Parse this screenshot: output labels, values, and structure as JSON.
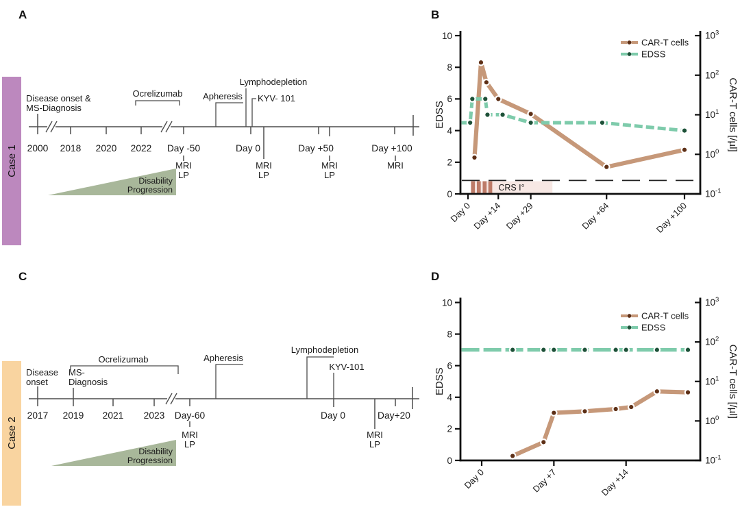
{
  "figure": {
    "background": "#ffffff"
  },
  "panels": {
    "a": {
      "letter": "A",
      "case_label": "Case 1",
      "case_color": "#bc88be",
      "disease_onset_line1": "Disease onset &",
      "disease_onset_line2": "MS-Diagnosis",
      "ocrelizumab": "Ocrelizumab",
      "apheresis": "Apheresis",
      "lymphodepletion": "Lymphodepletion",
      "kyv101": "KYV- 101",
      "ticks": [
        "2000",
        "2018",
        "2020",
        "2022",
        "Day -50",
        "Day 0",
        "Day +50",
        "Day +100"
      ],
      "mri": "MRI",
      "lp": "LP",
      "disability_line1": "Disability",
      "disability_line2": "Progression",
      "triangle_color": "#a8b79a"
    },
    "b": {
      "letter": "B"
    },
    "c": {
      "letter": "C",
      "case_label": "Case 2",
      "case_color": "#f9d4a0",
      "disease_line1": "Disease",
      "disease_line2": "onset",
      "ms_line1": "MS-",
      "ms_line2": "Diagnosis",
      "ocrelizumab": "Ocrelizumab",
      "apheresis": "Apheresis",
      "lymphodepletion": "Lymphodepletion",
      "kyv101": "KYV-101",
      "ticks": [
        "2017",
        "2019",
        "2021",
        "2023",
        "Day-60",
        "Day 0",
        "Day+20"
      ],
      "mri": "MRI",
      "lp": "LP",
      "disability_line1": "Disability",
      "disability_line2": "Progression",
      "triangle_color": "#a8b79a"
    },
    "d": {
      "letter": "D"
    }
  },
  "chart_data": [
    {
      "panel": "B",
      "type": "line",
      "left_axis": {
        "label": "EDSS",
        "min": 0,
        "max": 10,
        "ticks": [
          0,
          2,
          4,
          6,
          8,
          10
        ]
      },
      "right_axis": {
        "label": "CAR-T cells [/µl]",
        "scale": "log10",
        "tick_exponents": [
          3,
          2,
          1,
          0,
          -1
        ]
      },
      "x_ticks": [
        {
          "day": 0,
          "label": "Day 0"
        },
        {
          "day": 14,
          "label": "Day +14"
        },
        {
          "day": 29,
          "label": "Day +29"
        },
        {
          "day": 64,
          "label": "Day +64"
        },
        {
          "day": 100,
          "label": "Day +100"
        }
      ],
      "legend": [
        {
          "label": "CAR-T cells",
          "line_color": "#c69879",
          "dot_color": "#5d2f16"
        },
        {
          "label": "EDSS",
          "line_color": "#7ecbab",
          "dot_color": "#1d5138"
        }
      ],
      "series": [
        {
          "name": "CAR-T cells",
          "axis": "right",
          "unit": "/µl",
          "days": [
            3,
            6,
            8.5,
            14,
            29,
            64,
            100
          ],
          "values": [
            0.83,
            210,
            66,
            25,
            10.5,
            0.48,
            1.3
          ],
          "line_color": "#c69879",
          "dot_color": "#5d2f16",
          "dash": "none",
          "width": 6.2,
          "start_at_axis": false
        },
        {
          "name": "EDSS",
          "axis": "left",
          "days": [
            1,
            2,
            8,
            9,
            16,
            29,
            62,
            100
          ],
          "values": [
            4.5,
            6,
            6,
            5,
            5,
            4.5,
            4.5,
            4
          ],
          "line_color": "#7ecbab",
          "dot_color": "#1d5138",
          "dash": "12 5",
          "width": 5,
          "start_at_axis": true
        }
      ],
      "annotations": {
        "dashed_line_edss": 0.85,
        "crs": {
          "label": "CRS I°",
          "day_start": 2,
          "day_end": 39,
          "bar_days": [
            2.3,
            5,
            7.7,
            10.3
          ],
          "bar_width_days": 1.8,
          "box_color": "#f7e8e4",
          "bar_color": "#bd7b68",
          "top_edss": 0.8
        }
      }
    },
    {
      "panel": "D",
      "type": "line",
      "left_axis": {
        "label": "EDSS",
        "min": 0,
        "max": 10,
        "ticks": [
          0,
          2,
          4,
          6,
          8,
          10
        ]
      },
      "right_axis": {
        "label": "CAR-T cells [/µl]",
        "scale": "log10",
        "tick_exponents": [
          3,
          2,
          1,
          0,
          -1
        ]
      },
      "x_ticks": [
        {
          "day": 0,
          "label": "Day 0"
        },
        {
          "day": 7,
          "label": "Day +7"
        },
        {
          "day": 14,
          "label": "Day +14"
        }
      ],
      "legend": [
        {
          "label": "CAR-T cells",
          "line_color": "#c69879",
          "dot_color": "#5d2f16"
        },
        {
          "label": "EDSS",
          "line_color": "#7ecbab",
          "dot_color": "#1d5138"
        }
      ],
      "series": [
        {
          "name": "CAR-T cells",
          "axis": "right",
          "unit": "/µl",
          "days": [
            3,
            6,
            7,
            10,
            13,
            14.5,
            17,
            20
          ],
          "values": [
            0.13,
            0.29,
            1.6,
            1.75,
            2.0,
            2.25,
            5.6,
            5.3
          ],
          "line_color": "#c69879",
          "dot_color": "#5d2f16",
          "dash": "none",
          "width": 6.2,
          "start_at_axis": false
        },
        {
          "name": "EDSS",
          "axis": "left",
          "days": [
            3,
            6,
            7,
            10,
            13,
            14,
            17,
            20
          ],
          "values": [
            7,
            7,
            7,
            7,
            7,
            7,
            7,
            7
          ],
          "line_color": "#7ecbab",
          "dot_color": "#1d5138",
          "dash": "26 6",
          "width": 5.2,
          "start_at_axis": true
        }
      ],
      "annotations": {}
    }
  ]
}
